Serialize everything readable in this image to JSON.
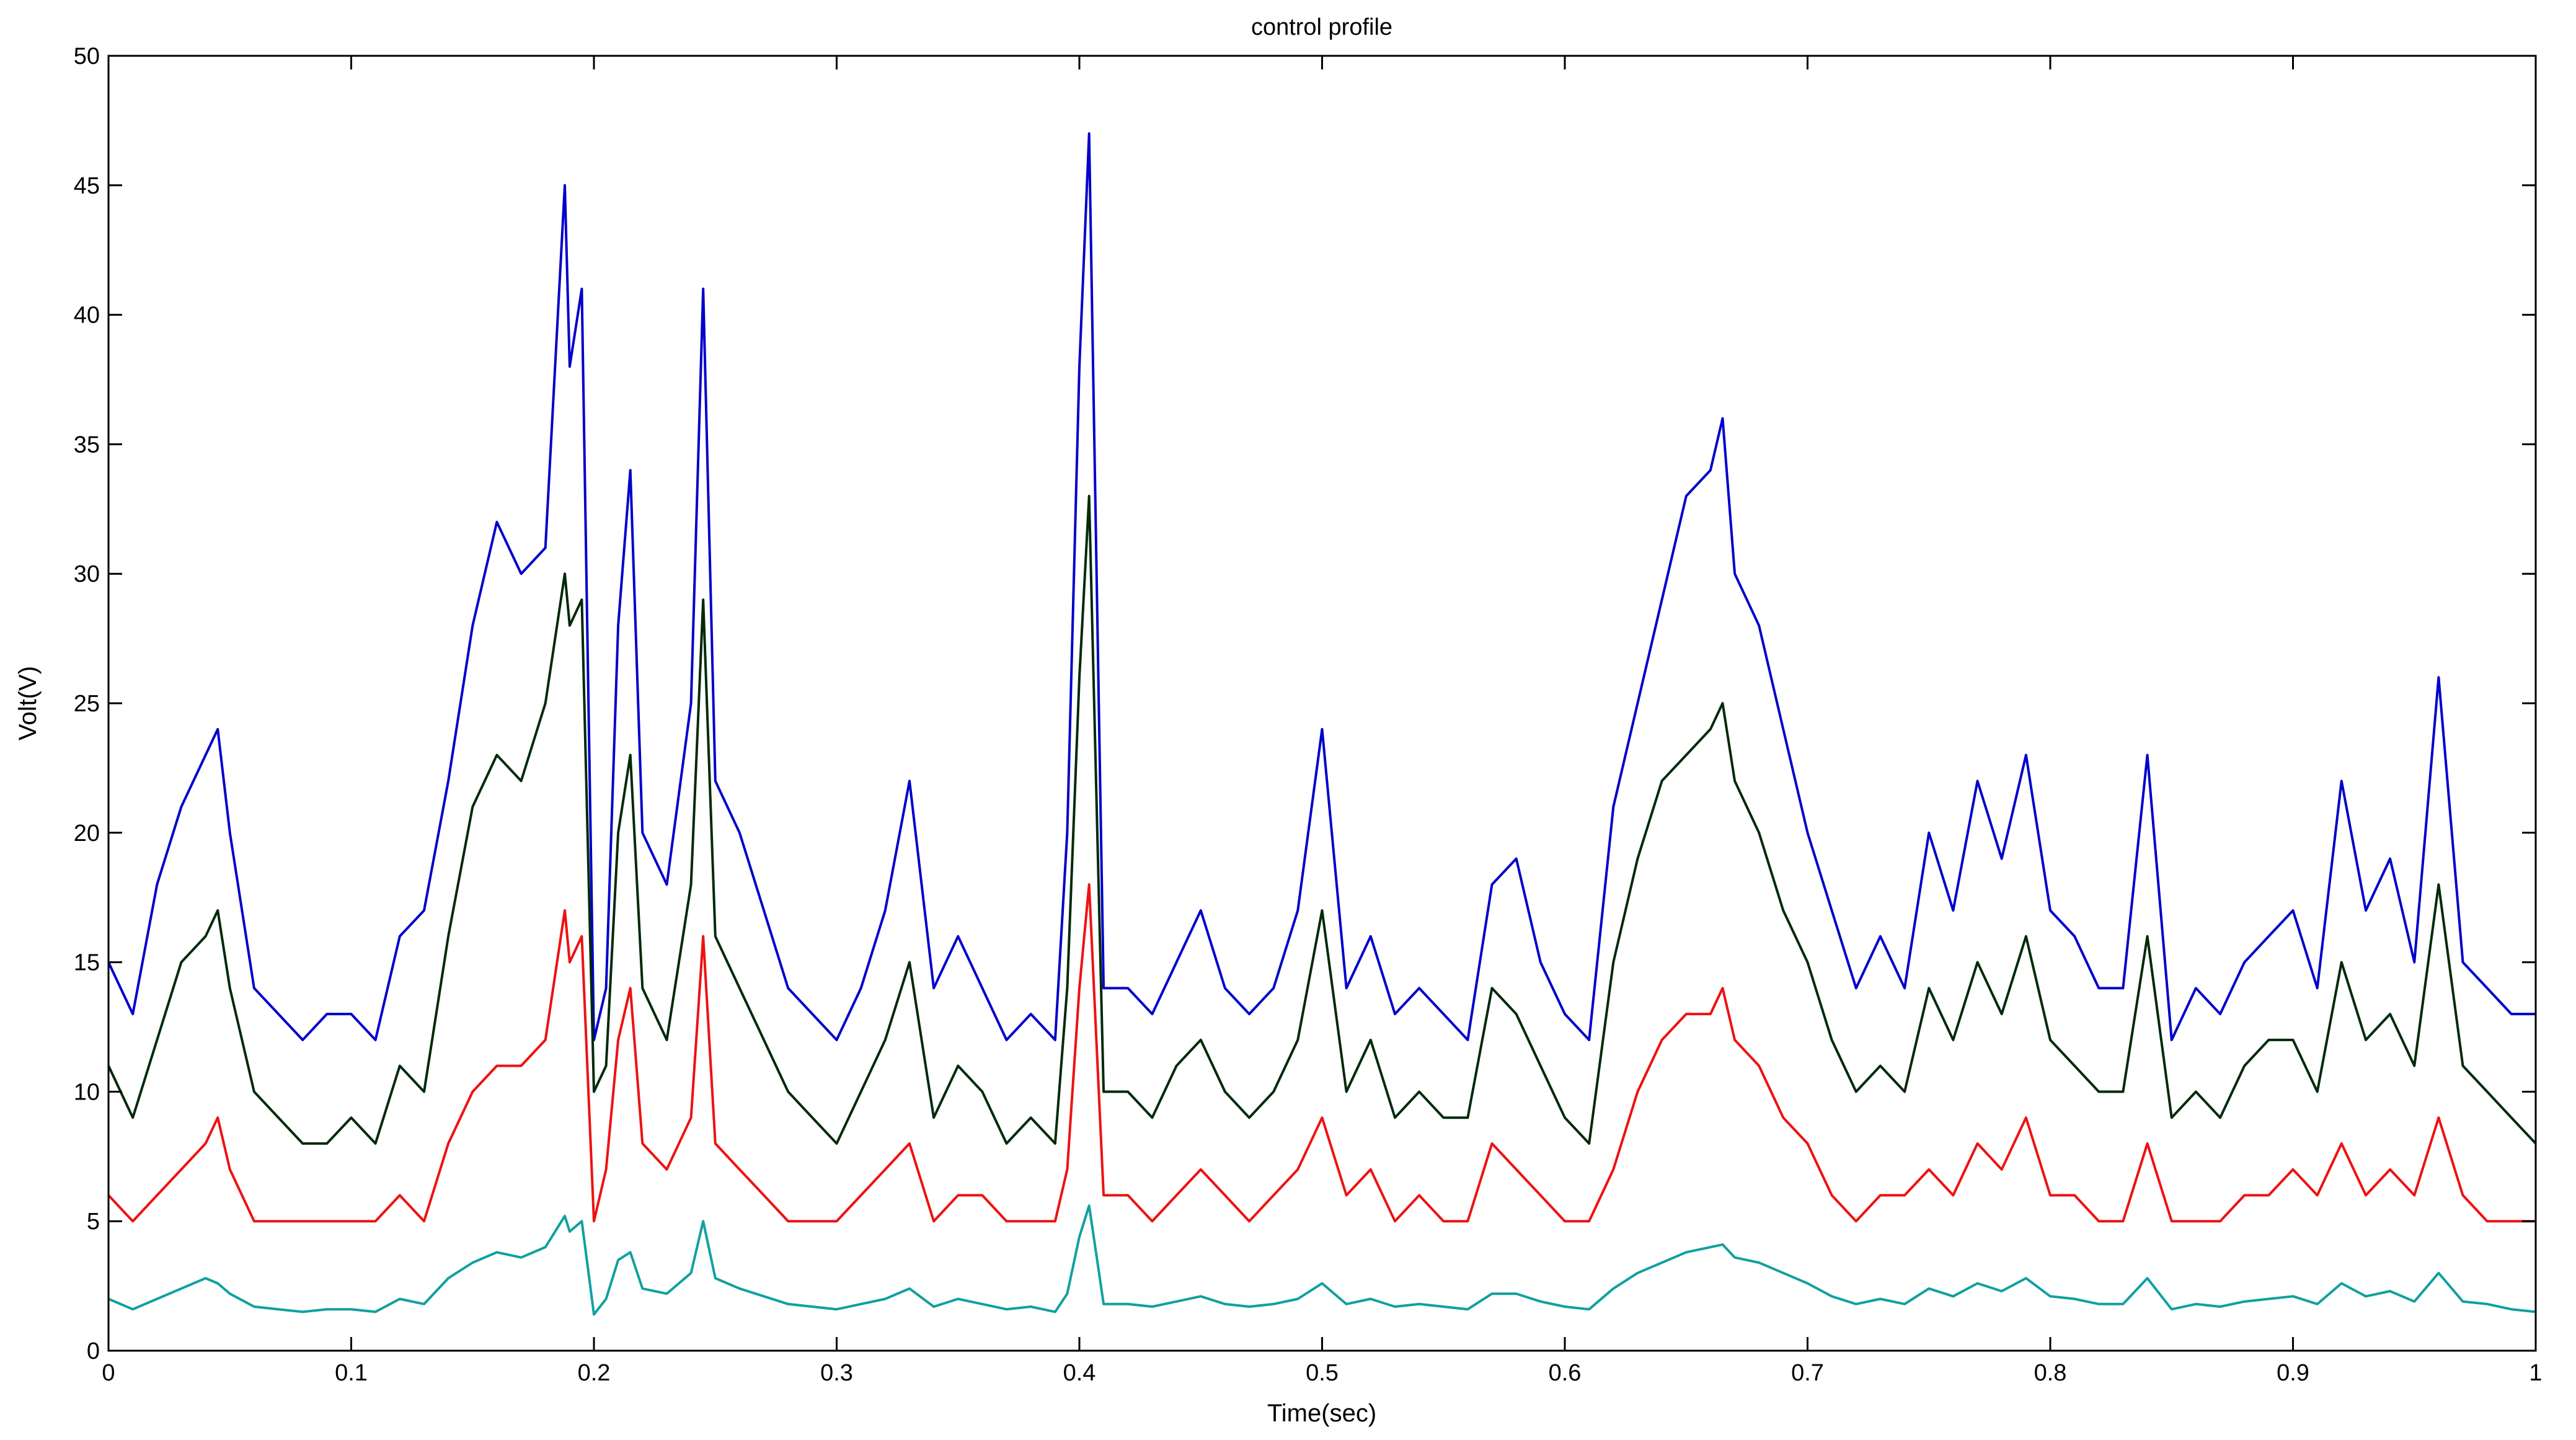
{
  "chart_data": {
    "type": "line",
    "title": "control profile",
    "xlabel": "Time(sec)",
    "ylabel": "Volt(V)",
    "xlim": [
      0,
      1
    ],
    "ylim": [
      0,
      50
    ],
    "xticks": [
      0,
      0.1,
      0.2,
      0.3,
      0.4,
      0.5,
      0.6,
      0.7,
      0.8,
      0.9,
      1
    ],
    "xtick_labels": [
      "0",
      "0.1",
      "0.2",
      "0.3",
      "0.4",
      "0.5",
      "0.6",
      "0.7",
      "0.8",
      "0.9",
      "1"
    ],
    "yticks": [
      0,
      5,
      10,
      15,
      20,
      25,
      30,
      35,
      40,
      45,
      50
    ],
    "ytick_labels": [
      "0",
      "5",
      "10",
      "15",
      "20",
      "25",
      "30",
      "35",
      "40",
      "45",
      "50"
    ],
    "grid": false,
    "legend": "none",
    "x": [
      0,
      0.01,
      0.02,
      0.03,
      0.04,
      0.045,
      0.05,
      0.06,
      0.07,
      0.08,
      0.09,
      0.1,
      0.11,
      0.12,
      0.13,
      0.14,
      0.15,
      0.16,
      0.17,
      0.18,
      0.188,
      0.19,
      0.195,
      0.2,
      0.205,
      0.21,
      0.215,
      0.22,
      0.23,
      0.24,
      0.245,
      0.25,
      0.26,
      0.27,
      0.28,
      0.29,
      0.3,
      0.31,
      0.32,
      0.33,
      0.34,
      0.35,
      0.36,
      0.37,
      0.38,
      0.39,
      0.395,
      0.4,
      0.404,
      0.41,
      0.42,
      0.43,
      0.44,
      0.45,
      0.46,
      0.47,
      0.48,
      0.49,
      0.5,
      0.51,
      0.52,
      0.53,
      0.54,
      0.55,
      0.56,
      0.57,
      0.58,
      0.59,
      0.6,
      0.61,
      0.62,
      0.63,
      0.64,
      0.65,
      0.66,
      0.665,
      0.67,
      0.68,
      0.69,
      0.7,
      0.71,
      0.72,
      0.73,
      0.74,
      0.75,
      0.76,
      0.77,
      0.78,
      0.79,
      0.8,
      0.81,
      0.82,
      0.83,
      0.84,
      0.85,
      0.86,
      0.87,
      0.88,
      0.89,
      0.9,
      0.91,
      0.92,
      0.93,
      0.94,
      0.95,
      0.96,
      0.97,
      0.98,
      0.99,
      1
    ],
    "series": [
      {
        "color": "#0000cc",
        "values": [
          15,
          13,
          18,
          21,
          23,
          24,
          20,
          14,
          13,
          12,
          13,
          13,
          12,
          16,
          17,
          22,
          28,
          32,
          30,
          31,
          45,
          38,
          41,
          12,
          14,
          28,
          34,
          20,
          18,
          25,
          41,
          22,
          20,
          17,
          14,
          13,
          12,
          14,
          17,
          22,
          14,
          16,
          14,
          12,
          13,
          12,
          20,
          38,
          47,
          14,
          14,
          13,
          15,
          17,
          14,
          13,
          14,
          17,
          24,
          14,
          16,
          13,
          14,
          13,
          12,
          18,
          19,
          15,
          13,
          12,
          21,
          25,
          29,
          33,
          34,
          36,
          30,
          28,
          24,
          20,
          17,
          14,
          16,
          14,
          20,
          17,
          22,
          19,
          23,
          17,
          16,
          14,
          14,
          23,
          12,
          14,
          13,
          15,
          16,
          17,
          14,
          22,
          17,
          19,
          15,
          26,
          15,
          14,
          13,
          13
        ]
      },
      {
        "color": "#002a0a",
        "values": [
          11,
          9,
          12,
          15,
          16,
          17,
          14,
          10,
          9,
          8,
          8,
          9,
          8,
          11,
          10,
          16,
          21,
          23,
          22,
          25,
          30,
          28,
          29,
          10,
          11,
          20,
          23,
          14,
          12,
          18,
          29,
          16,
          14,
          12,
          10,
          9,
          8,
          10,
          12,
          15,
          9,
          11,
          10,
          8,
          9,
          8,
          14,
          26,
          33,
          10,
          10,
          9,
          11,
          12,
          10,
          9,
          10,
          12,
          17,
          10,
          12,
          9,
          10,
          9,
          9,
          14,
          13,
          11,
          9,
          8,
          15,
          19,
          22,
          23,
          24,
          25,
          22,
          20,
          17,
          15,
          12,
          10,
          11,
          10,
          14,
          12,
          15,
          13,
          16,
          12,
          11,
          10,
          10,
          16,
          9,
          10,
          9,
          11,
          12,
          12,
          10,
          15,
          12,
          13,
          11,
          18,
          11,
          10,
          9,
          8
        ]
      },
      {
        "color": "#ee1111",
        "values": [
          6,
          5,
          6,
          7,
          8,
          9,
          7,
          5,
          5,
          5,
          5,
          5,
          5,
          6,
          5,
          8,
          10,
          11,
          11,
          12,
          17,
          15,
          16,
          5,
          7,
          12,
          14,
          8,
          7,
          9,
          16,
          8,
          7,
          6,
          5,
          5,
          5,
          6,
          7,
          8,
          5,
          6,
          6,
          5,
          5,
          5,
          7,
          14,
          18,
          6,
          6,
          5,
          6,
          7,
          6,
          5,
          6,
          7,
          9,
          6,
          7,
          5,
          6,
          5,
          5,
          8,
          7,
          6,
          5,
          5,
          7,
          10,
          12,
          13,
          13,
          14,
          12,
          11,
          9,
          8,
          6,
          5,
          6,
          6,
          7,
          6,
          8,
          7,
          9,
          6,
          6,
          5,
          5,
          8,
          5,
          5,
          5,
          6,
          6,
          7,
          6,
          8,
          6,
          7,
          6,
          9,
          6,
          5,
          5,
          5
        ]
      },
      {
        "color": "#11a0a0",
        "values": [
          2,
          1.6,
          2,
          2.4,
          2.8,
          2.6,
          2.2,
          1.7,
          1.6,
          1.5,
          1.6,
          1.6,
          1.5,
          2,
          1.8,
          2.8,
          3.4,
          3.8,
          3.6,
          4,
          5.2,
          4.6,
          5,
          1.4,
          2,
          3.5,
          3.8,
          2.4,
          2.2,
          3,
          5,
          2.8,
          2.4,
          2.1,
          1.8,
          1.7,
          1.6,
          1.8,
          2,
          2.4,
          1.7,
          2,
          1.8,
          1.6,
          1.7,
          1.5,
          2.2,
          4.4,
          5.6,
          1.8,
          1.8,
          1.7,
          1.9,
          2.1,
          1.8,
          1.7,
          1.8,
          2,
          2.6,
          1.8,
          2,
          1.7,
          1.8,
          1.7,
          1.6,
          2.2,
          2.2,
          1.9,
          1.7,
          1.6,
          2.4,
          3,
          3.4,
          3.8,
          4,
          4.1,
          3.6,
          3.4,
          3,
          2.6,
          2.1,
          1.8,
          2,
          1.8,
          2.4,
          2.1,
          2.6,
          2.3,
          2.8,
          2.1,
          2,
          1.8,
          1.8,
          2.8,
          1.6,
          1.8,
          1.7,
          1.9,
          2,
          2.1,
          1.8,
          2.6,
          2.1,
          2.3,
          1.9,
          3,
          1.9,
          1.8,
          1.6,
          1.5
        ]
      }
    ]
  }
}
